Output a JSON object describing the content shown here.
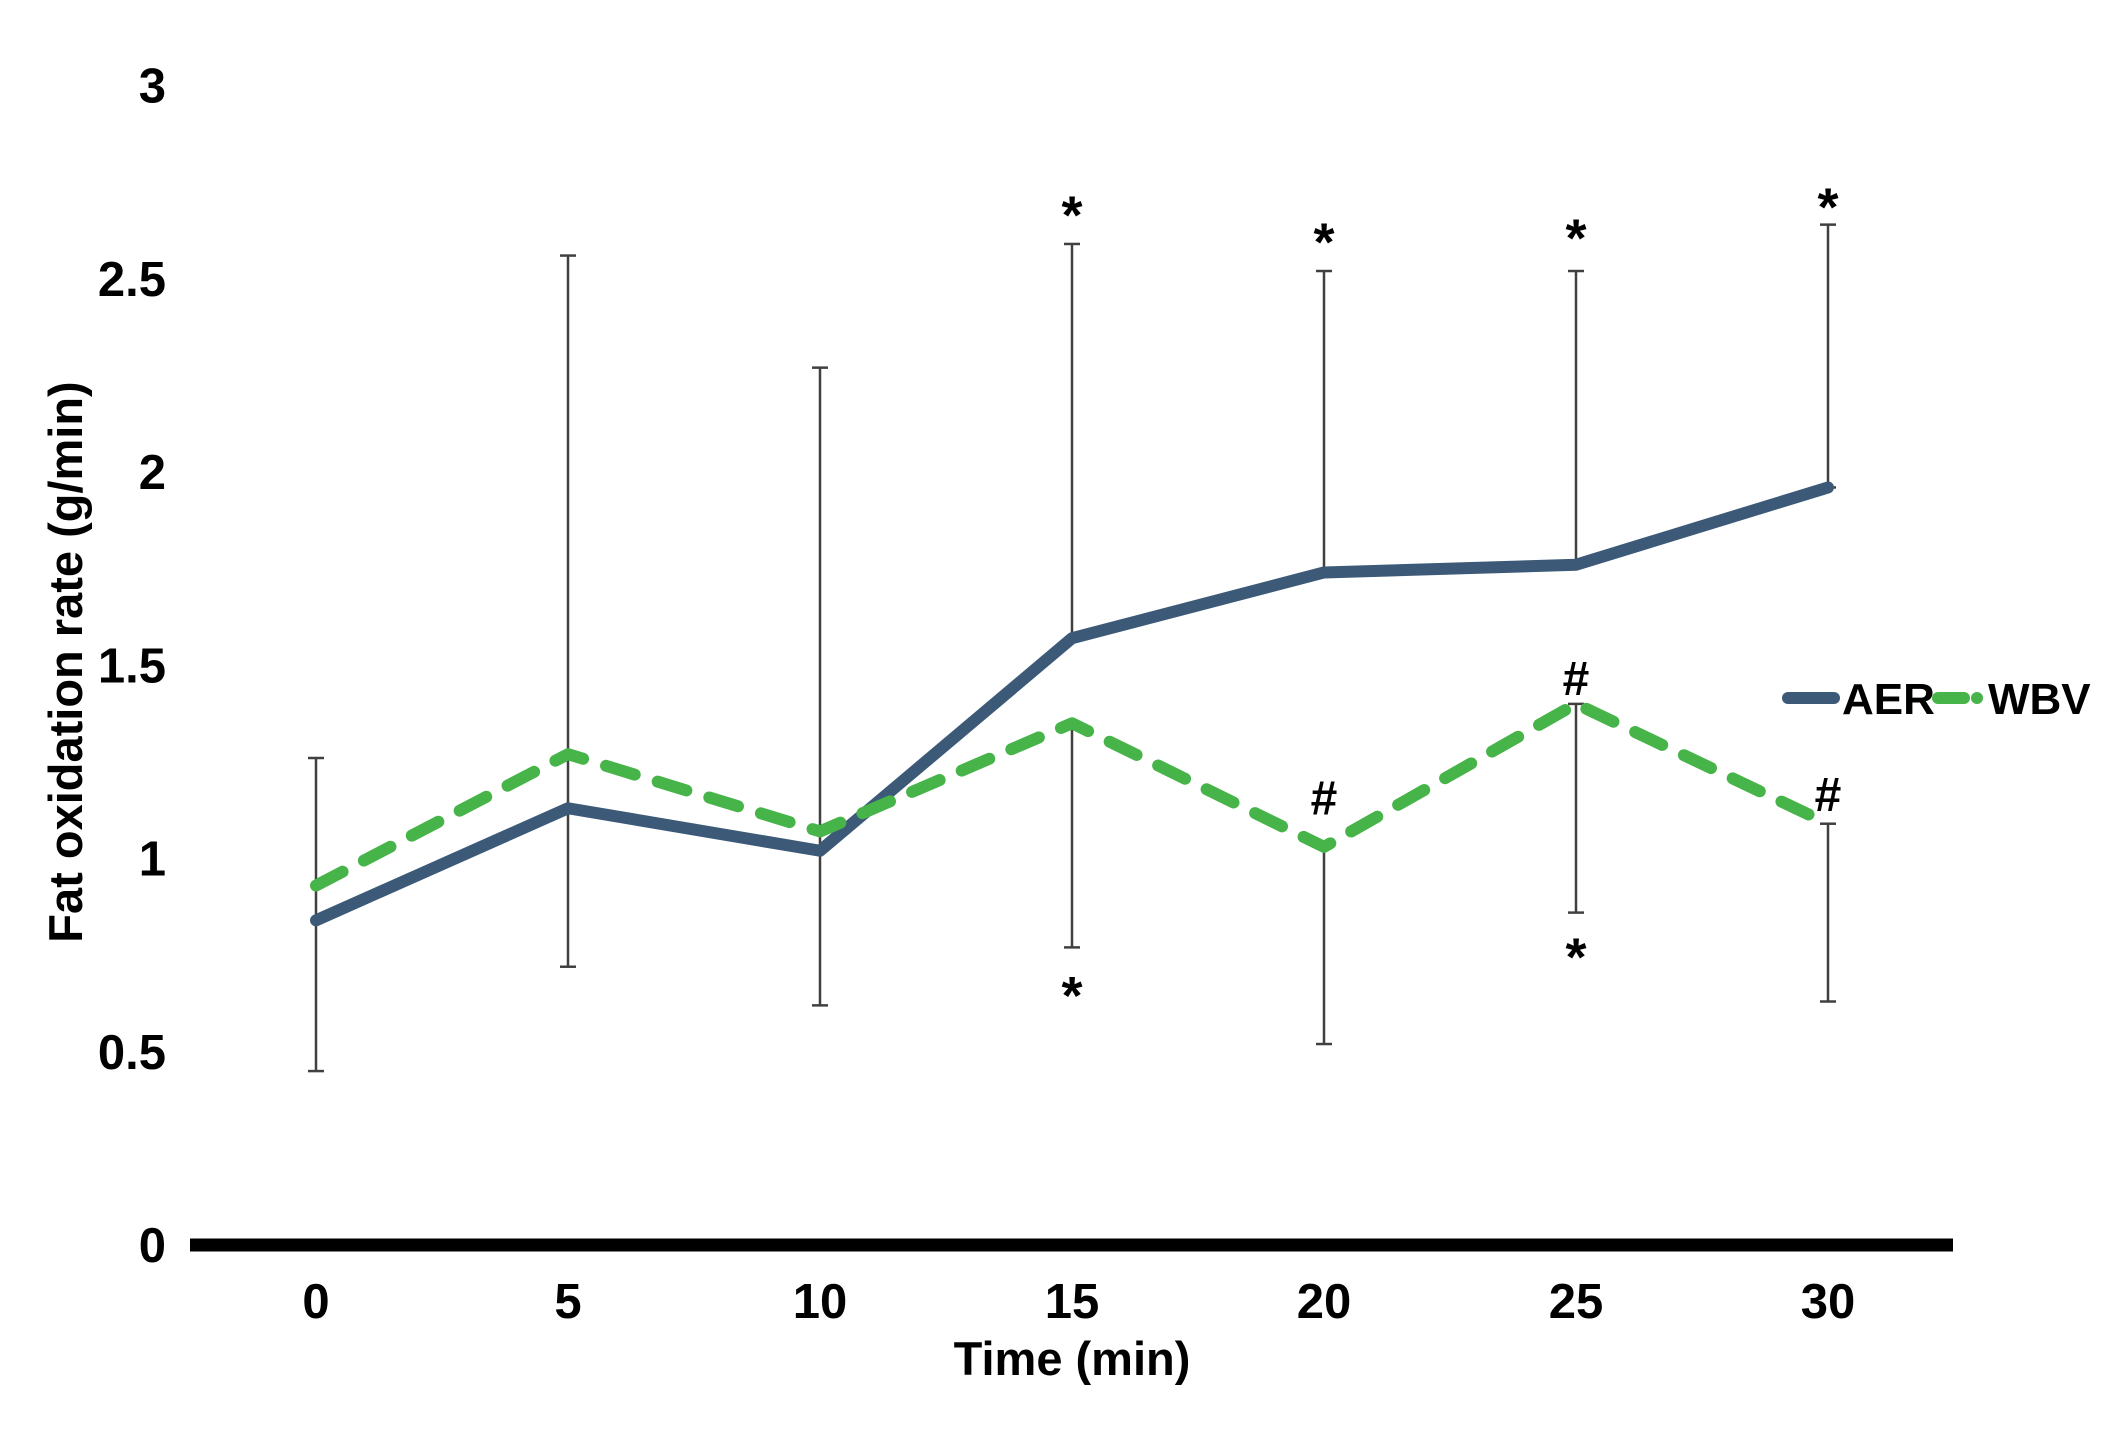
{
  "chart_data": {
    "type": "line",
    "title": "",
    "xlabel": "Time (min)",
    "ylabel": "Fat oxidation rate (g/min)",
    "x": [
      0,
      5,
      10,
      15,
      20,
      25,
      30
    ],
    "x_tick_labels": [
      "0",
      "5",
      "10",
      "15",
      "20",
      "25",
      "30"
    ],
    "y_ticks": [
      0,
      0.5,
      1,
      1.5,
      2,
      2.5,
      3
    ],
    "y_tick_labels": [
      "0",
      "0.5",
      "1",
      "1.5",
      "2",
      "2.5",
      "3"
    ],
    "ylim": [
      0,
      3
    ],
    "grid": false,
    "legend_position": "right-middle",
    "series": [
      {
        "name": "AER",
        "style": "solid",
        "color": "#3C5A78",
        "values": [
          0.84,
          1.13,
          1.02,
          1.57,
          1.74,
          1.76,
          1.96
        ]
      },
      {
        "name": "WBV",
        "style": "dashed",
        "color": "#46B449",
        "values": [
          0.93,
          1.27,
          1.07,
          1.35,
          1.03,
          1.4,
          1.09
        ]
      }
    ],
    "error_bars": [
      {
        "t": 0,
        "from": 0.45,
        "to": 1.26
      },
      {
        "t": 5,
        "from": 0.72,
        "to": 2.56
      },
      {
        "t": 10,
        "from": 0.62,
        "to": 2.27
      },
      {
        "t": 15,
        "from": 1.57,
        "to": 2.59
      },
      {
        "t": 15,
        "from": 0.77,
        "to": 1.35
      },
      {
        "t": 20,
        "from": 1.74,
        "to": 2.52
      },
      {
        "t": 20,
        "from": 0.52,
        "to": 1.03
      },
      {
        "t": 25,
        "from": 1.76,
        "to": 2.52
      },
      {
        "t": 25,
        "from": 0.86,
        "to": 1.4
      },
      {
        "t": 30,
        "from": 1.96,
        "to": 2.64
      },
      {
        "t": 30,
        "from": 0.63,
        "to": 1.09
      }
    ],
    "annotations": [
      {
        "t": 15,
        "value": 2.7,
        "symbol": "*"
      },
      {
        "t": 20,
        "value": 2.63,
        "symbol": "*"
      },
      {
        "t": 25,
        "value": 2.64,
        "symbol": "*"
      },
      {
        "t": 30,
        "value": 2.72,
        "symbol": "*"
      },
      {
        "t": 15,
        "value": 0.68,
        "symbol": "*"
      },
      {
        "t": 25,
        "value": 0.78,
        "symbol": "*"
      },
      {
        "t": 20,
        "value": 1.16,
        "symbol": "#"
      },
      {
        "t": 25,
        "value": 1.47,
        "symbol": "#"
      },
      {
        "t": 30,
        "value": 1.17,
        "symbol": "#"
      }
    ]
  },
  "legend": {
    "items": [
      {
        "label": "AER",
        "color": "#3C5A78",
        "style": "solid"
      },
      {
        "label": "WBV",
        "color": "#46B449",
        "style": "dashed"
      }
    ]
  },
  "colors": {
    "aer": "#3C5A78",
    "wbv": "#46B449",
    "axis": "#000000",
    "error_bar": "#404040",
    "text": "#000000"
  }
}
